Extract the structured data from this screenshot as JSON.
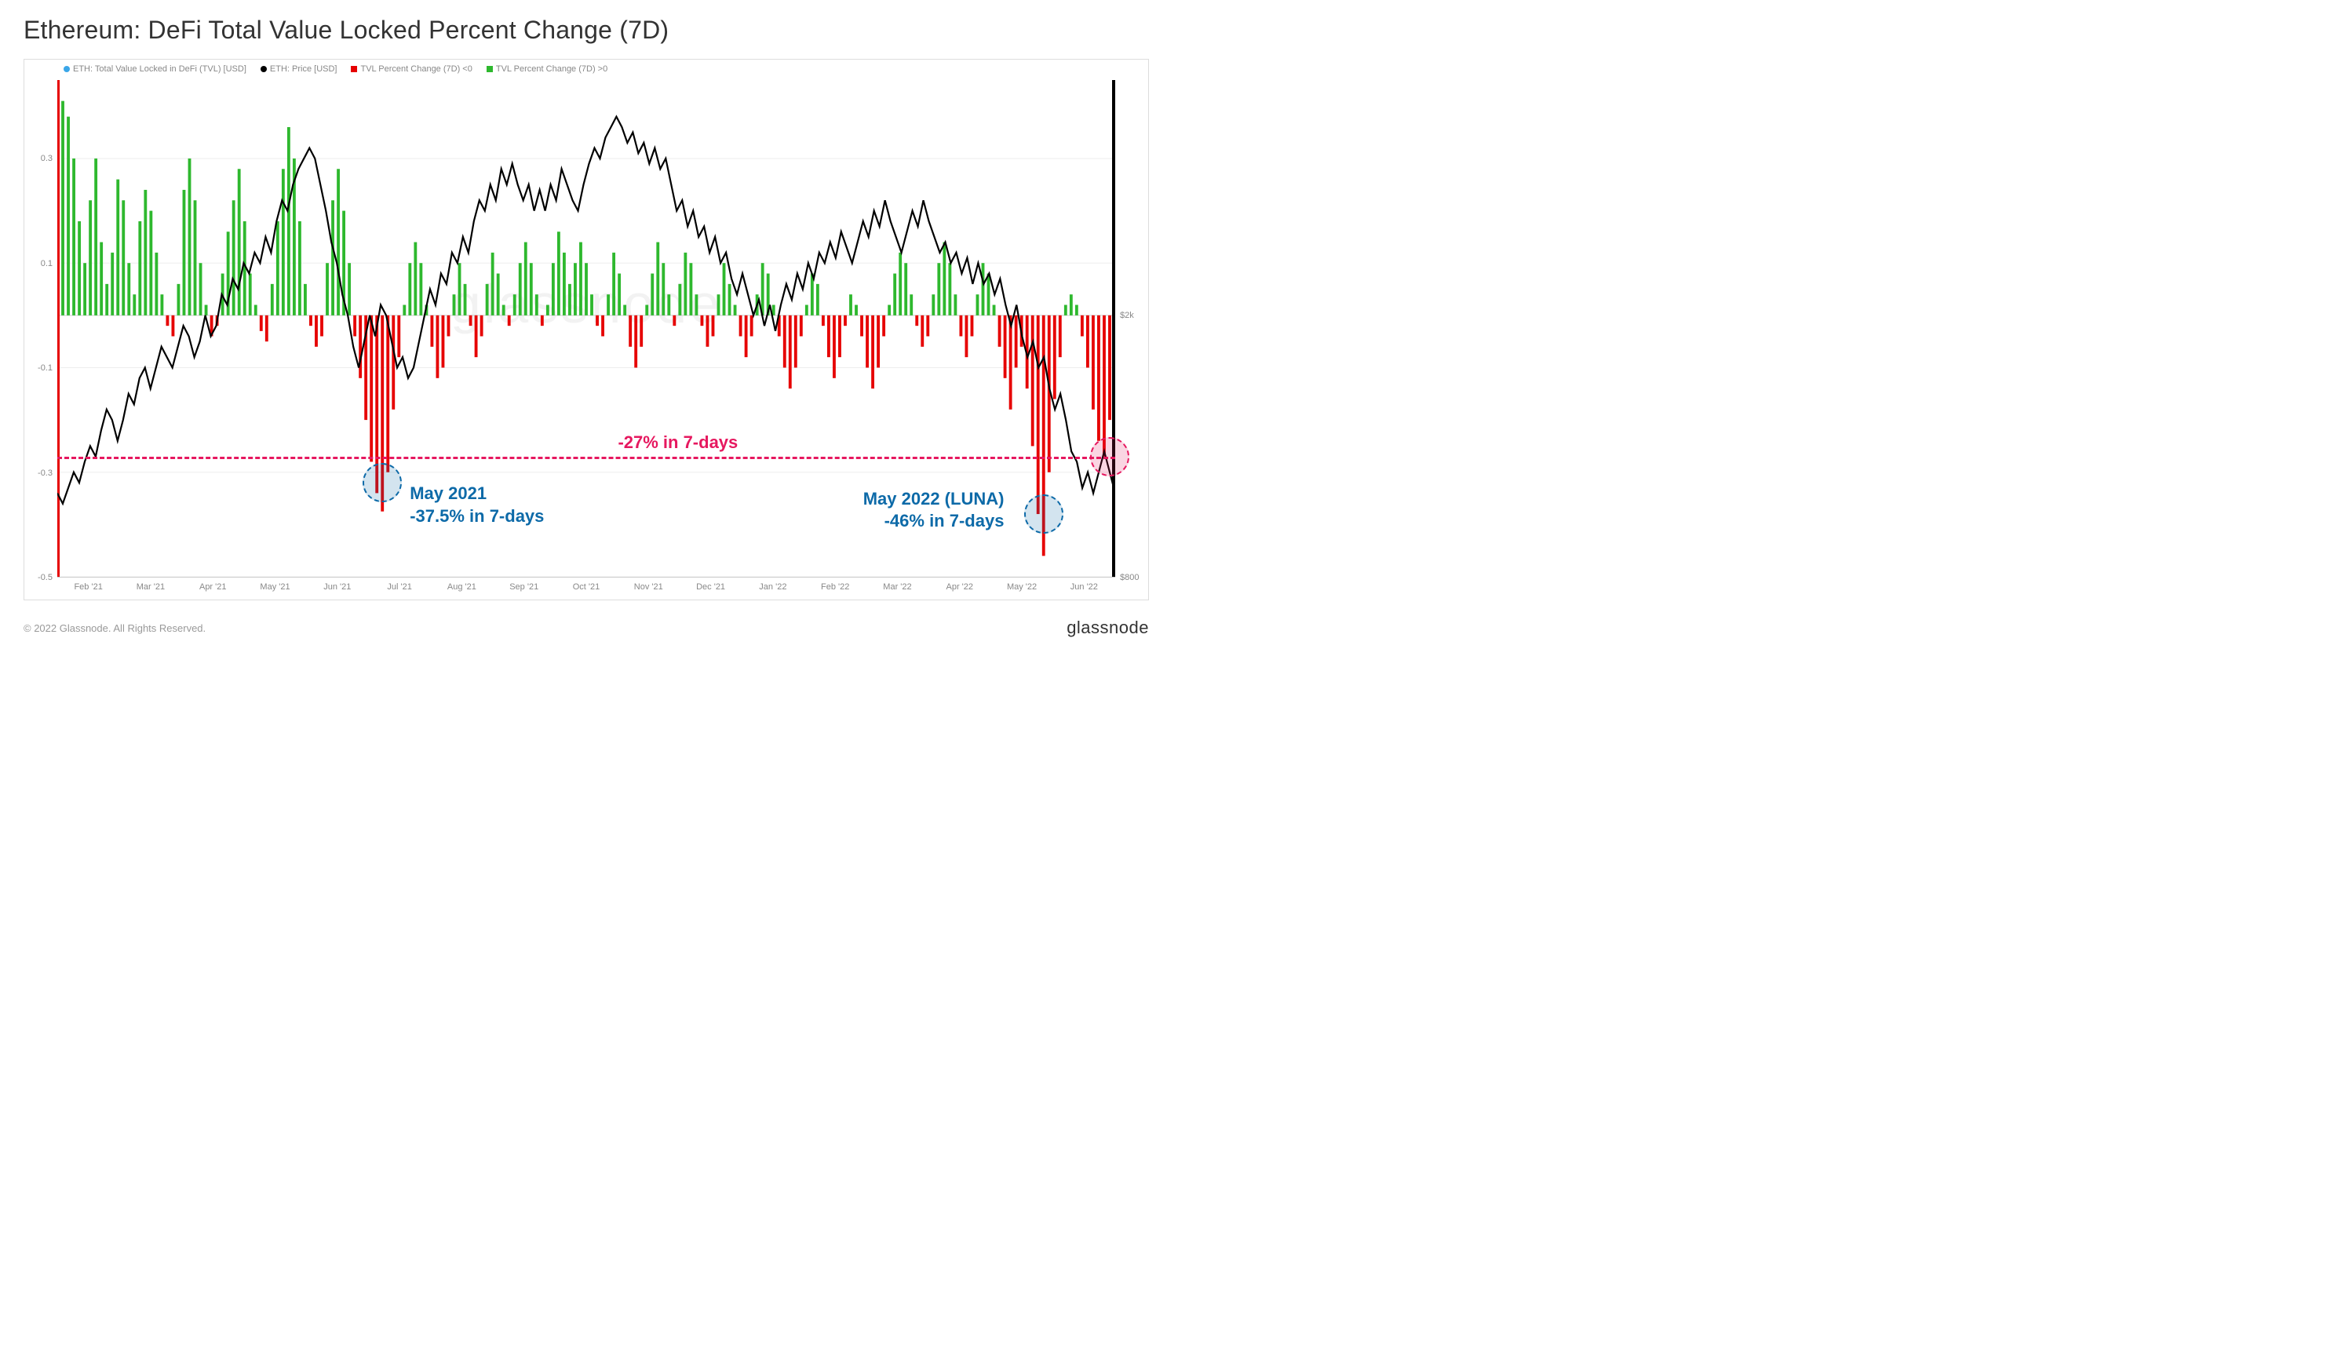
{
  "title": "Ethereum: DeFi Total Value Locked Percent Change (7D)",
  "copyright": "© 2022 Glassnode. All Rights Reserved.",
  "brand": "glassnode",
  "watermark": "glassnode",
  "legend": [
    {
      "label": "ETH: Total Value Locked in DeFi (TVL) [USD]",
      "color": "#3aa6e8",
      "shape": "dot"
    },
    {
      "label": "ETH: Price [USD]",
      "color": "#000000",
      "shape": "dot"
    },
    {
      "label": "TVL Percent Change (7D) <0",
      "color": "#e60000",
      "shape": "square"
    },
    {
      "label": "TVL Percent Change (7D) >0",
      "color": "#2eb82e",
      "shape": "square"
    }
  ],
  "chart": {
    "type": "combined-bar-line",
    "background_color": "#ffffff",
    "grid_color": "#eeeeee",
    "left_axis": {
      "min": -0.5,
      "max": 0.45,
      "ticks": [
        0.3,
        0.1,
        -0.1,
        -0.3,
        -0.5
      ],
      "label_fontsize": 11
    },
    "right_axis": {
      "scale": "log",
      "ticks": [
        {
          "v": 2000,
          "label": "$2k"
        },
        {
          "v": 800,
          "label": "$800"
        }
      ],
      "map_to_left": {
        "2000": 0.0,
        "800": -0.5
      }
    },
    "x_labels": [
      "Feb '21",
      "Mar '21",
      "Apr '21",
      "May '21",
      "Jun '21",
      "Jul '21",
      "Aug '21",
      "Sep '21",
      "Oct '21",
      "Nov '21",
      "Dec '21",
      "Jan '22",
      "Feb '22",
      "Mar '22",
      "Apr '22",
      "May '22",
      "Jun '22"
    ],
    "zero_line_y": 0.0,
    "dash_level": -0.27,
    "bar_color_pos": "#2eb82e",
    "bar_color_neg": "#e60000",
    "line_color": "#000000",
    "line_width": 2.2,
    "bars_pct": [
      -0.5,
      0.41,
      0.38,
      0.3,
      0.18,
      0.1,
      0.22,
      0.3,
      0.14,
      0.06,
      0.12,
      0.26,
      0.22,
      0.1,
      0.04,
      0.18,
      0.24,
      0.2,
      0.12,
      0.04,
      -0.02,
      -0.04,
      0.06,
      0.24,
      0.3,
      0.22,
      0.1,
      0.02,
      -0.04,
      -0.02,
      0.08,
      0.16,
      0.22,
      0.28,
      0.18,
      0.08,
      0.02,
      -0.03,
      -0.05,
      0.06,
      0.18,
      0.28,
      0.36,
      0.3,
      0.18,
      0.06,
      -0.02,
      -0.06,
      -0.04,
      0.1,
      0.22,
      0.28,
      0.2,
      0.1,
      -0.04,
      -0.12,
      -0.2,
      -0.28,
      -0.34,
      -0.375,
      -0.3,
      -0.18,
      -0.08,
      0.02,
      0.1,
      0.14,
      0.1,
      0.02,
      -0.06,
      -0.12,
      -0.1,
      -0.04,
      0.04,
      0.1,
      0.06,
      -0.02,
      -0.08,
      -0.04,
      0.06,
      0.12,
      0.08,
      0.02,
      -0.02,
      0.04,
      0.1,
      0.14,
      0.1,
      0.04,
      -0.02,
      0.02,
      0.1,
      0.16,
      0.12,
      0.06,
      0.1,
      0.14,
      0.1,
      0.04,
      -0.02,
      -0.04,
      0.04,
      0.12,
      0.08,
      0.02,
      -0.06,
      -0.1,
      -0.06,
      0.02,
      0.08,
      0.14,
      0.1,
      0.04,
      -0.02,
      0.06,
      0.12,
      0.1,
      0.04,
      -0.02,
      -0.06,
      -0.04,
      0.04,
      0.1,
      0.06,
      0.02,
      -0.04,
      -0.08,
      -0.04,
      0.04,
      0.1,
      0.08,
      0.02,
      -0.04,
      -0.1,
      -0.14,
      -0.1,
      -0.04,
      0.02,
      0.08,
      0.06,
      -0.02,
      -0.08,
      -0.12,
      -0.08,
      -0.02,
      0.04,
      0.02,
      -0.04,
      -0.1,
      -0.14,
      -0.1,
      -0.04,
      0.02,
      0.08,
      0.12,
      0.1,
      0.04,
      -0.02,
      -0.06,
      -0.04,
      0.04,
      0.1,
      0.14,
      0.1,
      0.04,
      -0.04,
      -0.08,
      -0.04,
      0.04,
      0.1,
      0.08,
      0.02,
      -0.06,
      -0.12,
      -0.18,
      -0.1,
      -0.06,
      -0.14,
      -0.25,
      -0.38,
      -0.46,
      -0.3,
      -0.16,
      -0.08,
      0.02,
      0.04,
      0.02,
      -0.04,
      -0.1,
      -0.18,
      -0.24,
      -0.27,
      -0.2,
      -0.1
    ],
    "price_line_leftunits": [
      -0.34,
      -0.36,
      -0.33,
      -0.3,
      -0.32,
      -0.28,
      -0.25,
      -0.27,
      -0.22,
      -0.18,
      -0.2,
      -0.24,
      -0.2,
      -0.15,
      -0.17,
      -0.12,
      -0.1,
      -0.14,
      -0.1,
      -0.06,
      -0.08,
      -0.1,
      -0.06,
      -0.02,
      -0.04,
      -0.08,
      -0.05,
      0.0,
      -0.04,
      -0.02,
      0.04,
      0.02,
      0.07,
      0.05,
      0.1,
      0.08,
      0.12,
      0.1,
      0.15,
      0.12,
      0.18,
      0.22,
      0.2,
      0.25,
      0.28,
      0.3,
      0.32,
      0.3,
      0.25,
      0.2,
      0.14,
      0.1,
      0.04,
      0.0,
      -0.06,
      -0.1,
      -0.05,
      0.0,
      -0.04,
      0.02,
      0.0,
      -0.05,
      -0.1,
      -0.08,
      -0.12,
      -0.1,
      -0.05,
      0.0,
      0.05,
      0.02,
      0.08,
      0.06,
      0.12,
      0.1,
      0.15,
      0.12,
      0.18,
      0.22,
      0.2,
      0.25,
      0.22,
      0.28,
      0.25,
      0.29,
      0.25,
      0.22,
      0.25,
      0.2,
      0.24,
      0.2,
      0.25,
      0.22,
      0.28,
      0.25,
      0.22,
      0.2,
      0.25,
      0.29,
      0.32,
      0.3,
      0.34,
      0.36,
      0.38,
      0.36,
      0.33,
      0.35,
      0.31,
      0.33,
      0.29,
      0.32,
      0.28,
      0.3,
      0.25,
      0.2,
      0.22,
      0.17,
      0.2,
      0.15,
      0.17,
      0.12,
      0.15,
      0.1,
      0.12,
      0.07,
      0.04,
      0.08,
      0.04,
      0.0,
      0.03,
      -0.02,
      0.02,
      -0.03,
      0.02,
      0.06,
      0.03,
      0.08,
      0.05,
      0.1,
      0.07,
      0.12,
      0.1,
      0.14,
      0.11,
      0.16,
      0.13,
      0.1,
      0.14,
      0.18,
      0.15,
      0.2,
      0.17,
      0.22,
      0.18,
      0.15,
      0.12,
      0.16,
      0.2,
      0.17,
      0.22,
      0.18,
      0.15,
      0.12,
      0.14,
      0.1,
      0.12,
      0.08,
      0.11,
      0.06,
      0.1,
      0.06,
      0.08,
      0.04,
      0.07,
      0.02,
      -0.02,
      0.02,
      -0.04,
      -0.08,
      -0.05,
      -0.1,
      -0.08,
      -0.14,
      -0.18,
      -0.15,
      -0.2,
      -0.26,
      -0.28,
      -0.33,
      -0.3,
      -0.34,
      -0.3,
      -0.26,
      -0.3,
      -0.34
    ]
  },
  "annotations": {
    "dash_label": "-27% in 7-days",
    "may2021": {
      "title": "May 2021",
      "sub": "-37.5% in 7-days"
    },
    "may2022": {
      "title": "May 2022 (LUNA)",
      "sub": "-46% in 7-days"
    }
  }
}
